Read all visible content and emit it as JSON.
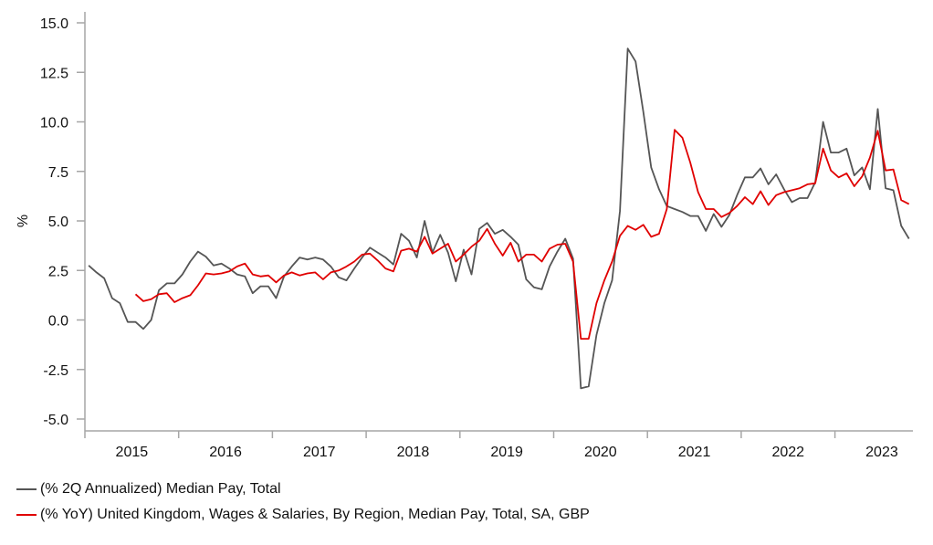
{
  "chart_data": {
    "type": "line",
    "title": "",
    "xlabel": "",
    "ylabel": "%",
    "ylim": [
      -5.0,
      15.0
    ],
    "yticks": [
      "15.0",
      "12.5",
      "10.0",
      "7.5",
      "5.0",
      "2.5",
      "0.0",
      "-2.5",
      "-5.0"
    ],
    "ytick_values": [
      15.0,
      12.5,
      10.0,
      7.5,
      5.0,
      2.5,
      0.0,
      -2.5,
      -5.0
    ],
    "xticks": [
      "2015",
      "2016",
      "2017",
      "2018",
      "2019",
      "2020",
      "2021",
      "2022",
      "2023"
    ],
    "x_range_years": [
      2015.0,
      2023.83
    ],
    "x_frequency": "monthly",
    "grid": false,
    "legend_position": "bottom-left",
    "series": [
      {
        "name": "(% 2Q Annualized) Median Pay, Total",
        "color": "#555555",
        "start": "2015-01",
        "values": [
          2.75,
          2.4,
          2.1,
          1.1,
          0.85,
          -0.1,
          -0.1,
          -0.45,
          0.0,
          1.5,
          1.85,
          1.85,
          2.3,
          2.95,
          3.45,
          3.2,
          2.75,
          2.85,
          2.6,
          2.3,
          2.2,
          1.35,
          1.7,
          1.7,
          1.1,
          2.2,
          2.7,
          3.15,
          3.05,
          3.15,
          3.05,
          2.7,
          2.15,
          2.0,
          2.6,
          3.15,
          3.65,
          3.4,
          3.15,
          2.8,
          4.35,
          4.0,
          3.15,
          5.0,
          3.4,
          4.3,
          3.4,
          1.95,
          3.55,
          2.3,
          4.6,
          4.9,
          4.35,
          4.55,
          4.2,
          3.8,
          2.05,
          1.65,
          1.55,
          2.7,
          3.45,
          4.1,
          3.1,
          -3.45,
          -3.35,
          -0.75,
          0.85,
          2.0,
          5.5,
          13.7,
          13.05,
          10.5,
          7.7,
          6.6,
          5.75,
          5.6,
          5.45,
          5.25,
          5.25,
          4.5,
          5.35,
          4.7,
          5.3,
          6.3,
          7.2,
          7.2,
          7.65,
          6.85,
          7.35,
          6.6,
          5.95,
          6.15,
          6.15,
          6.95,
          10.0,
          8.45,
          8.45,
          8.65,
          7.3,
          7.7,
          6.6,
          10.65,
          6.65,
          6.55,
          4.75,
          4.1
        ]
      },
      {
        "name": "(% YoY) United Kingdom, Wages & Salaries, By Region, Median Pay, Total, SA, GBP",
        "color": "#e00000",
        "start": "2015-07",
        "values": [
          1.3,
          0.95,
          1.05,
          1.3,
          1.35,
          0.9,
          1.1,
          1.25,
          1.75,
          2.35,
          2.3,
          2.35,
          2.45,
          2.7,
          2.85,
          2.3,
          2.2,
          2.25,
          1.9,
          2.25,
          2.4,
          2.25,
          2.35,
          2.4,
          2.05,
          2.4,
          2.5,
          2.7,
          2.95,
          3.3,
          3.35,
          3.0,
          2.6,
          2.45,
          3.5,
          3.6,
          3.45,
          4.2,
          3.35,
          3.6,
          3.85,
          2.95,
          3.3,
          3.7,
          4.0,
          4.6,
          3.85,
          3.25,
          3.9,
          2.95,
          3.3,
          3.3,
          2.95,
          3.6,
          3.8,
          3.85,
          2.95,
          -0.95,
          -0.95,
          0.85,
          2.0,
          2.95,
          4.25,
          4.75,
          4.55,
          4.8,
          4.2,
          4.35,
          5.6,
          9.6,
          9.2,
          7.95,
          6.45,
          5.6,
          5.6,
          5.2,
          5.4,
          5.75,
          6.2,
          5.85,
          6.5,
          5.8,
          6.3,
          6.45,
          6.55,
          6.65,
          6.85,
          6.9,
          8.65,
          7.55,
          7.2,
          7.4,
          6.75,
          7.25,
          8.2,
          9.55,
          7.55,
          7.6,
          6.05,
          5.85
        ]
      }
    ]
  },
  "legend": {
    "items": [
      {
        "label": "(% 2Q Annualized) Median Pay, Total",
        "color": "#555555"
      },
      {
        "label": "(% YoY) United Kingdom, Wages & Salaries, By Region, Median Pay, Total, SA, GBP",
        "color": "#e00000"
      }
    ]
  }
}
